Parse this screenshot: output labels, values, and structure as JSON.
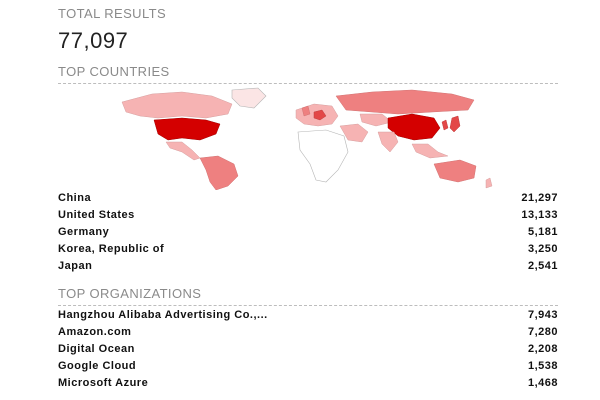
{
  "total": {
    "label": "TOTAL RESULTS",
    "value": "77,097"
  },
  "countries": {
    "label": "TOP COUNTRIES",
    "items": [
      {
        "name": "China",
        "count": "21,297"
      },
      {
        "name": "United States",
        "count": "13,133"
      },
      {
        "name": "Germany",
        "count": "5,181"
      },
      {
        "name": "Korea, Republic of",
        "count": "3,250"
      },
      {
        "name": "Japan",
        "count": "2,541"
      }
    ]
  },
  "organizations": {
    "label": "TOP ORGANIZATIONS",
    "items": [
      {
        "name": "Hangzhou Alibaba Advertising Co.,...",
        "count": "7,943"
      },
      {
        "name": "Amazon.com",
        "count": "7,280"
      },
      {
        "name": "Digital Ocean",
        "count": "2,208"
      },
      {
        "name": "Google Cloud",
        "count": "1,538"
      },
      {
        "name": "Microsoft Azure",
        "count": "1,468"
      }
    ]
  },
  "map": {
    "colors": {
      "none": "#ffffff",
      "low": "#fbe5e5",
      "medium_low": "#f6b3b3",
      "medium": "#ee8080",
      "high": "#e34848",
      "highest": "#d40000"
    }
  }
}
